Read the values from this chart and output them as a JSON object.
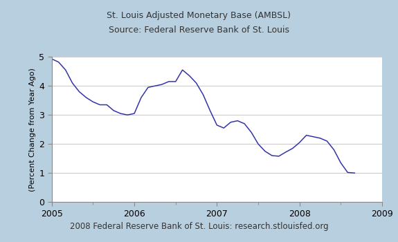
{
  "title_line1": "St. Louis Adjusted Monetary Base (AMBSL)",
  "title_line2": "Source: Federal Reserve Bank of St. Louis",
  "footer": "2008 Federal Reserve Bank of St. Louis: research.stlouisfed.org",
  "ylabel": "(Percent Change from Year Ago)",
  "xlim": [
    2005.0,
    2009.0
  ],
  "ylim": [
    0,
    5
  ],
  "yticks": [
    0,
    1,
    2,
    3,
    4,
    5
  ],
  "xticks": [
    2005,
    2006,
    2007,
    2008,
    2009
  ],
  "line_color": "#3333aa",
  "background_outer": "#b8cfe0",
  "background_inner": "#ffffff",
  "x": [
    2005.0,
    2005.083,
    2005.167,
    2005.25,
    2005.333,
    2005.417,
    2005.5,
    2005.583,
    2005.667,
    2005.75,
    2005.833,
    2005.917,
    2006.0,
    2006.083,
    2006.167,
    2006.25,
    2006.333,
    2006.417,
    2006.5,
    2006.583,
    2006.667,
    2006.75,
    2006.833,
    2006.917,
    2007.0,
    2007.083,
    2007.167,
    2007.25,
    2007.333,
    2007.417,
    2007.5,
    2007.583,
    2007.667,
    2007.75,
    2007.833,
    2007.917,
    2008.0,
    2008.083,
    2008.167,
    2008.25,
    2008.333,
    2008.417,
    2008.5,
    2008.583,
    2008.667
  ],
  "y": [
    4.93,
    4.82,
    4.55,
    4.1,
    3.8,
    3.6,
    3.45,
    3.35,
    3.35,
    3.15,
    3.05,
    3.0,
    3.05,
    3.6,
    3.95,
    4.0,
    4.05,
    4.15,
    4.15,
    4.55,
    4.35,
    4.1,
    3.7,
    3.15,
    2.65,
    2.55,
    2.75,
    2.8,
    2.7,
    2.4,
    2.0,
    1.75,
    1.6,
    1.58,
    1.72,
    1.85,
    2.05,
    2.3,
    2.25,
    2.2,
    2.1,
    1.8,
    1.35,
    1.02,
    1.0
  ]
}
